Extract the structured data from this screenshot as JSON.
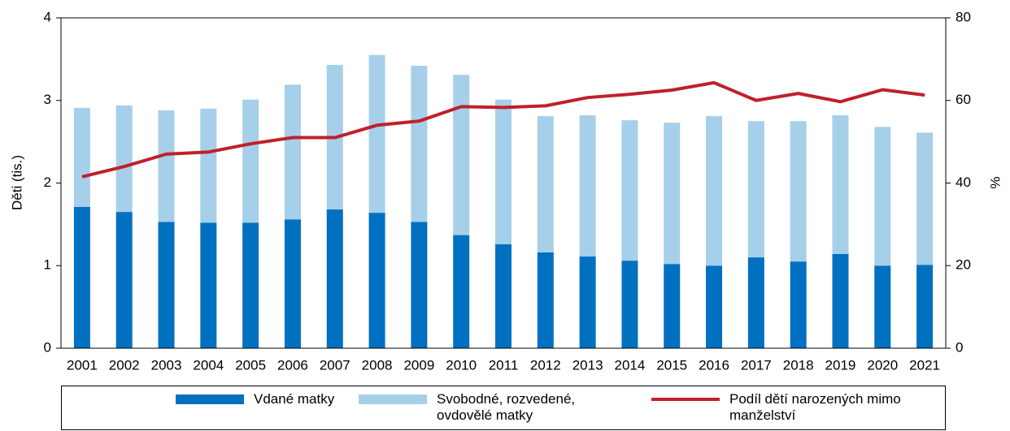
{
  "chart_data": {
    "type": "bar",
    "stacked": true,
    "categories": [
      "2001",
      "2002",
      "2003",
      "2004",
      "2005",
      "2006",
      "2007",
      "2008",
      "2009",
      "2010",
      "2011",
      "2012",
      "2013",
      "2014",
      "2015",
      "2016",
      "2017",
      "2018",
      "2019",
      "2020",
      "2021"
    ],
    "series": [
      {
        "name": "Vdané matky",
        "color": "#0070c0",
        "values": [
          1.71,
          1.65,
          1.53,
          1.52,
          1.52,
          1.56,
          1.68,
          1.64,
          1.53,
          1.37,
          1.26,
          1.16,
          1.11,
          1.06,
          1.02,
          1.0,
          1.1,
          1.05,
          1.14,
          1.0,
          1.01
        ]
      },
      {
        "name": "Svobodné, rozvedené, ovdovělé matky",
        "color": "#a6cfea",
        "values": [
          1.2,
          1.29,
          1.35,
          1.38,
          1.49,
          1.63,
          1.75,
          1.91,
          1.89,
          1.94,
          1.75,
          1.65,
          1.71,
          1.7,
          1.71,
          1.81,
          1.65,
          1.7,
          1.68,
          1.68,
          1.6
        ]
      },
      {
        "name": "Podíl dětí narozených mimo manželství",
        "color": "#c0202a",
        "type": "line",
        "axis": "y2",
        "values": [
          41.5,
          44,
          47,
          47.5,
          49.5,
          51,
          51,
          54,
          55,
          58.5,
          58.3,
          58.7,
          60.7,
          61.5,
          62.5,
          64.3,
          60,
          61.7,
          59.7,
          62.6,
          61.3
        ]
      }
    ],
    "ylabel": "Děti (tis.)",
    "y2label": "%",
    "ylim": [
      0,
      4
    ],
    "yticks": [
      0,
      1,
      2,
      3,
      4
    ],
    "y2lim": [
      0,
      80
    ],
    "y2ticks": [
      0,
      20,
      40,
      60,
      80
    ],
    "legend": "bottom"
  }
}
